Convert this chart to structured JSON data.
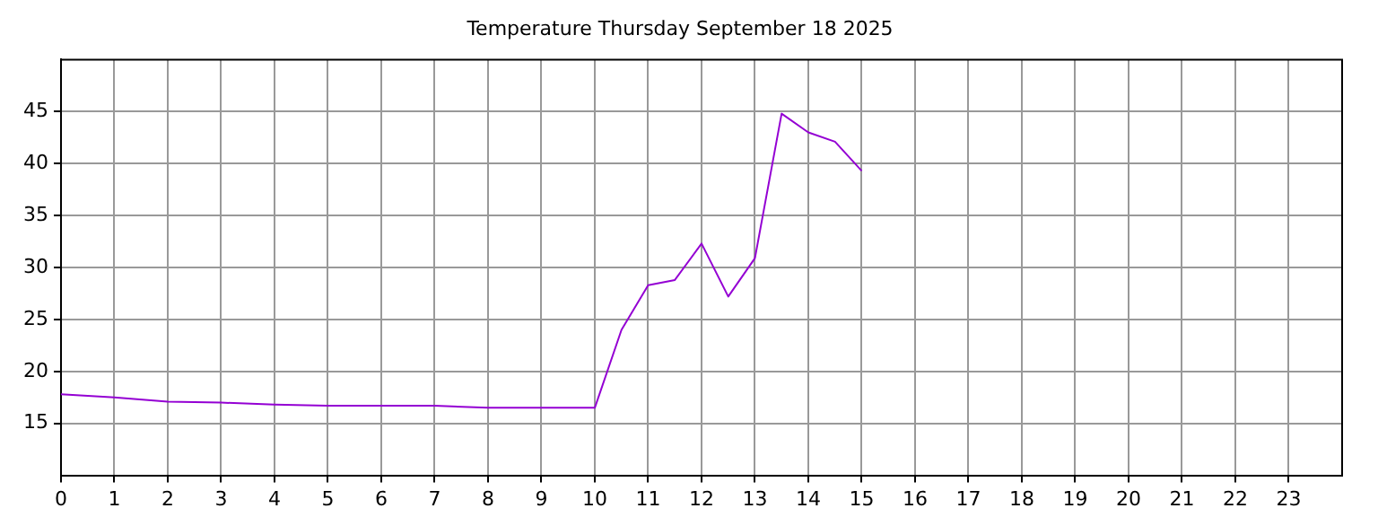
{
  "chart_data": {
    "type": "line",
    "title": "Temperature Thursday September 18 2025",
    "x": [
      0,
      1,
      2,
      3,
      4,
      5,
      6,
      7,
      8,
      9,
      10,
      10.5,
      11,
      11.5,
      12,
      12.5,
      13,
      13.5,
      14,
      14.5,
      15
    ],
    "series": [
      {
        "color": "#9400d3",
        "values": [
          17.8,
          17.5,
          17.1,
          17.0,
          16.8,
          16.7,
          16.7,
          16.7,
          16.5,
          16.5,
          16.5,
          24.0,
          28.3,
          28.8,
          32.3,
          27.2,
          30.9,
          44.8,
          43.0,
          42.1,
          39.3
        ]
      }
    ],
    "xlim": [
      0,
      24
    ],
    "xticks": [
      0,
      1,
      2,
      3,
      4,
      5,
      6,
      7,
      8,
      9,
      10,
      11,
      12,
      13,
      14,
      15,
      16,
      17,
      18,
      19,
      20,
      21,
      22,
      23
    ],
    "ylim": [
      10,
      50
    ],
    "yticks": [
      15,
      20,
      25,
      30,
      35,
      40,
      45
    ],
    "grid": true,
    "legend": false,
    "marker": "none",
    "line_style": "solid"
  }
}
